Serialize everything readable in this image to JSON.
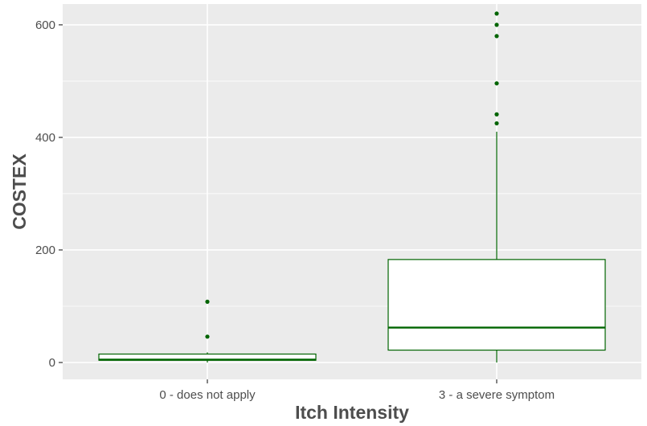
{
  "chart_data": {
    "type": "boxplot",
    "title": "",
    "xlabel": "Itch Intensity",
    "ylabel": "COSTEX",
    "ylim": [
      -30,
      637
    ],
    "yticks": [
      0,
      200,
      400,
      600
    ],
    "categories": [
      "0 - does not apply",
      "3 - a severe symptom"
    ],
    "boxes": [
      {
        "category": "0 - does not apply",
        "whisker_low": 0,
        "q1": 4,
        "median": 5,
        "q3": 15,
        "whisker_high": 18,
        "outliers": [
          46,
          108
        ]
      },
      {
        "category": "3 - a severe symptom",
        "whisker_low": 0,
        "q1": 22,
        "median": 62,
        "q3": 183,
        "whisker_high": 410,
        "outliers": [
          425,
          441,
          496,
          580,
          600,
          620
        ]
      }
    ],
    "grid": true,
    "legend": "none",
    "colors": {
      "panel": "#ebebeb",
      "grid": "#ffffff",
      "box_line": "#006400",
      "box_fill": "#ffffff",
      "point": "#006400",
      "text": "#4d4d4d",
      "tick": "#333333"
    }
  }
}
